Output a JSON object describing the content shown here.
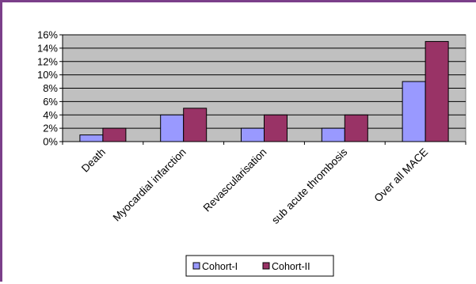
{
  "chart_data": {
    "type": "bar",
    "categories": [
      "Death",
      "Myocardial infarction",
      "Revascularisation",
      "sub acute thrombosis",
      "Over all MACE"
    ],
    "series": [
      {
        "name": "Cohort-I",
        "values": [
          1,
          4,
          2,
          2,
          9
        ],
        "color": "#9999ff"
      },
      {
        "name": "Cohort-II",
        "values": [
          2,
          5,
          4,
          4,
          15
        ],
        "color": "#993366"
      }
    ],
    "ylim": [
      0,
      16
    ],
    "yticks": [
      "0%",
      "2%",
      "4%",
      "6%",
      "8%",
      "10%",
      "12%",
      "14%",
      "16%"
    ],
    "ytick_values": [
      0,
      2,
      4,
      6,
      8,
      10,
      12,
      14,
      16
    ],
    "grid": true,
    "legend_position": "bottom",
    "plot_background": "#c0c0c0"
  }
}
